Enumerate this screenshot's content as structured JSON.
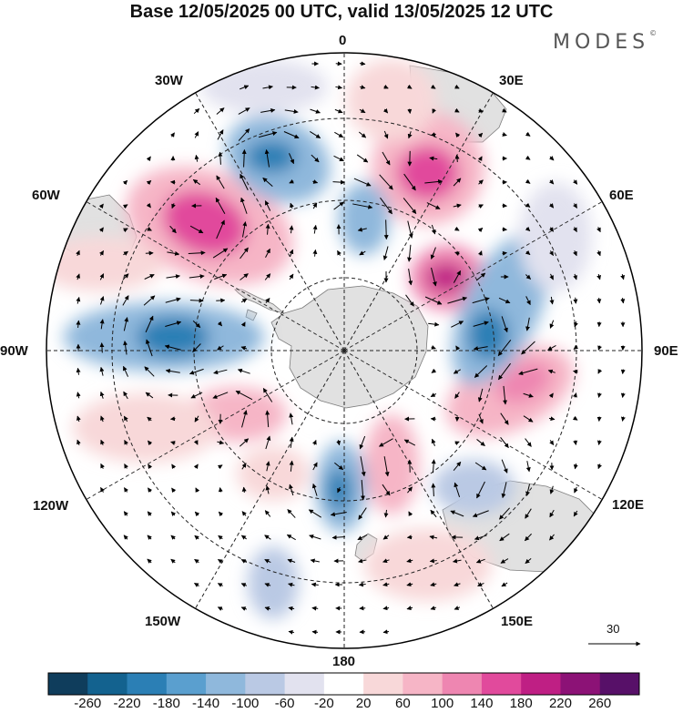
{
  "title": "Base 12/05/2025 00 UTC, valid 13/05/2025 12 UTC",
  "logo": "MODES",
  "logo_mark": "©",
  "longitude_labels": {
    "lon_0": "0",
    "lon_30e": "30E",
    "lon_60e": "60E",
    "lon_90e": "90E",
    "lon_120e": "120E",
    "lon_150e": "150E",
    "lon_180": "180",
    "lon_150w": "150W",
    "lon_120w": "120W",
    "lon_90w": "90W",
    "lon_60w": "60W",
    "lon_30w": "30W"
  },
  "vector_reference": {
    "label": "30"
  },
  "colorbar": {
    "ticks": [
      "-260",
      "-220",
      "-180",
      "-140",
      "-100",
      "-60",
      "-20",
      "20",
      "60",
      "100",
      "140",
      "180",
      "220",
      "260"
    ],
    "colors": [
      "#0f3d5c",
      "#13628f",
      "#2b7fb5",
      "#5a9fcf",
      "#8fb8dc",
      "#bac9e4",
      "#e2e2ef",
      "#ffffff",
      "#f8d8d9",
      "#f6b5c6",
      "#ee86b1",
      "#e14a9c",
      "#bf1f84",
      "#8c1276",
      "#571068"
    ]
  },
  "colors": {
    "land": "#dcdcdc",
    "frame": "#000000",
    "grid": "#222222"
  }
}
